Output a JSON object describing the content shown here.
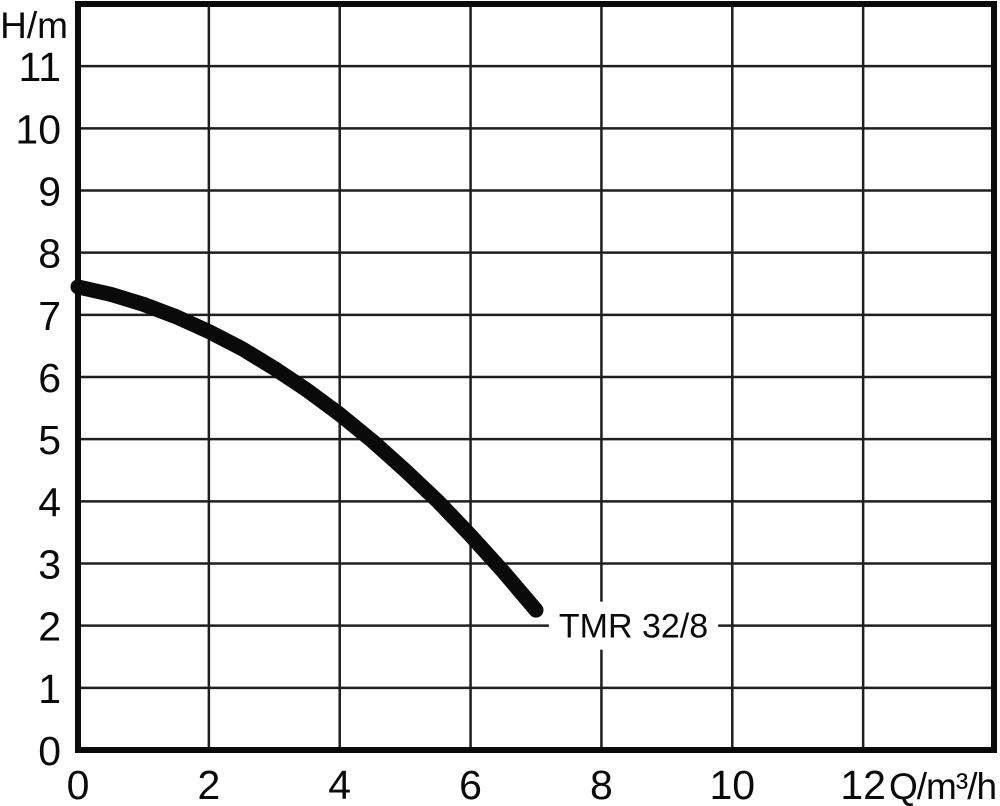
{
  "chart_data": {
    "type": "line",
    "title": "",
    "ylabel": "H/m",
    "xlabel": "Q/m³/h",
    "xlim": [
      0,
      14
    ],
    "ylim": [
      0,
      12
    ],
    "grid": true,
    "legend_position": "none",
    "x_tick_values": [
      0,
      2,
      4,
      6,
      8,
      10,
      12
    ],
    "x_tick_labels": [
      "0",
      "2",
      "4",
      "6",
      "8",
      "10",
      "12"
    ],
    "y_tick_values": [
      0,
      1,
      2,
      3,
      4,
      5,
      6,
      7,
      8,
      9,
      10,
      11
    ],
    "y_tick_labels": [
      "0",
      "1",
      "2",
      "3",
      "4",
      "5",
      "6",
      "7",
      "8",
      "9",
      "10",
      "11"
    ],
    "x_gridline_values": [
      2,
      4,
      6,
      8,
      10,
      12
    ],
    "y_gridline_values": [
      1,
      2,
      3,
      4,
      5,
      6,
      7,
      8,
      9,
      10,
      11
    ],
    "series": [
      {
        "name": "TMR 32/8",
        "x": [
          0,
          0.5,
          1,
          1.5,
          2,
          2.5,
          3,
          3.5,
          4,
          4.5,
          5,
          5.5,
          6,
          6.5,
          7
        ],
        "y": [
          7.45,
          7.33,
          7.17,
          6.97,
          6.73,
          6.46,
          6.14,
          5.79,
          5.4,
          4.97,
          4.5,
          4.0,
          3.45,
          2.87,
          2.25
        ]
      }
    ],
    "annotations": [
      {
        "text": "TMR 32/8",
        "x": 7.35,
        "y": 2.0
      }
    ],
    "colors": {
      "background": "#ffffff",
      "grid": "#1f1f1f",
      "border": "#0a0a0a",
      "curve": "#0a0a0a",
      "text": "#0a0a0a"
    }
  }
}
